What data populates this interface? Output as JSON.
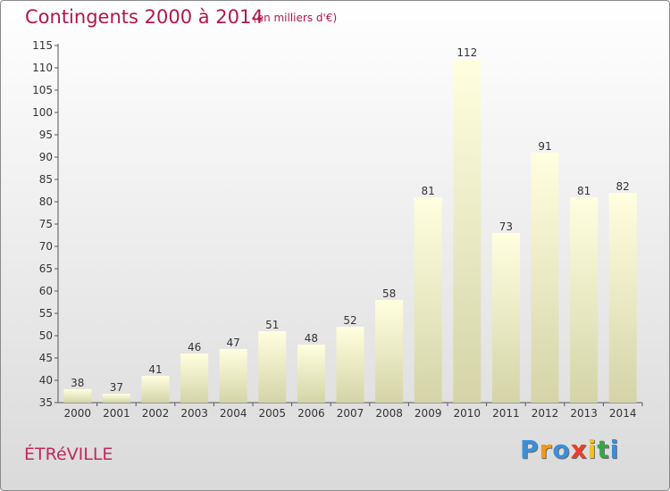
{
  "chart_data": {
    "type": "bar",
    "title": "Contingents 2000 à 2014",
    "subtitle": "(en milliers d'€)",
    "categories": [
      "2000",
      "2001",
      "2002",
      "2003",
      "2004",
      "2005",
      "2006",
      "2007",
      "2008",
      "2009",
      "2010",
      "2011",
      "2012",
      "2013",
      "2014"
    ],
    "values": [
      38,
      37,
      41,
      46,
      47,
      51,
      48,
      52,
      58,
      81,
      112,
      73,
      91,
      81,
      82
    ],
    "ylim": [
      35,
      115
    ],
    "yticks": [
      35,
      40,
      45,
      50,
      55,
      60,
      65,
      70,
      75,
      80,
      85,
      90,
      95,
      100,
      105,
      110,
      115
    ],
    "grid": false,
    "legend": "none"
  },
  "footer": {
    "commune": "ÉTRéVILLE",
    "logo_letters": [
      "P",
      "r",
      "o",
      "x",
      "i",
      "t",
      "i"
    ],
    "logo_colors": [
      "#3b8fd9",
      "#f29a17",
      "#3b8fd9",
      "#e8402a",
      "#f2c418",
      "#39a548",
      "#3b8fd9"
    ]
  },
  "colors": {
    "title": "#b5164a",
    "bar_top": "#ffffe0",
    "bar_bottom": "#d4d4a8"
  }
}
